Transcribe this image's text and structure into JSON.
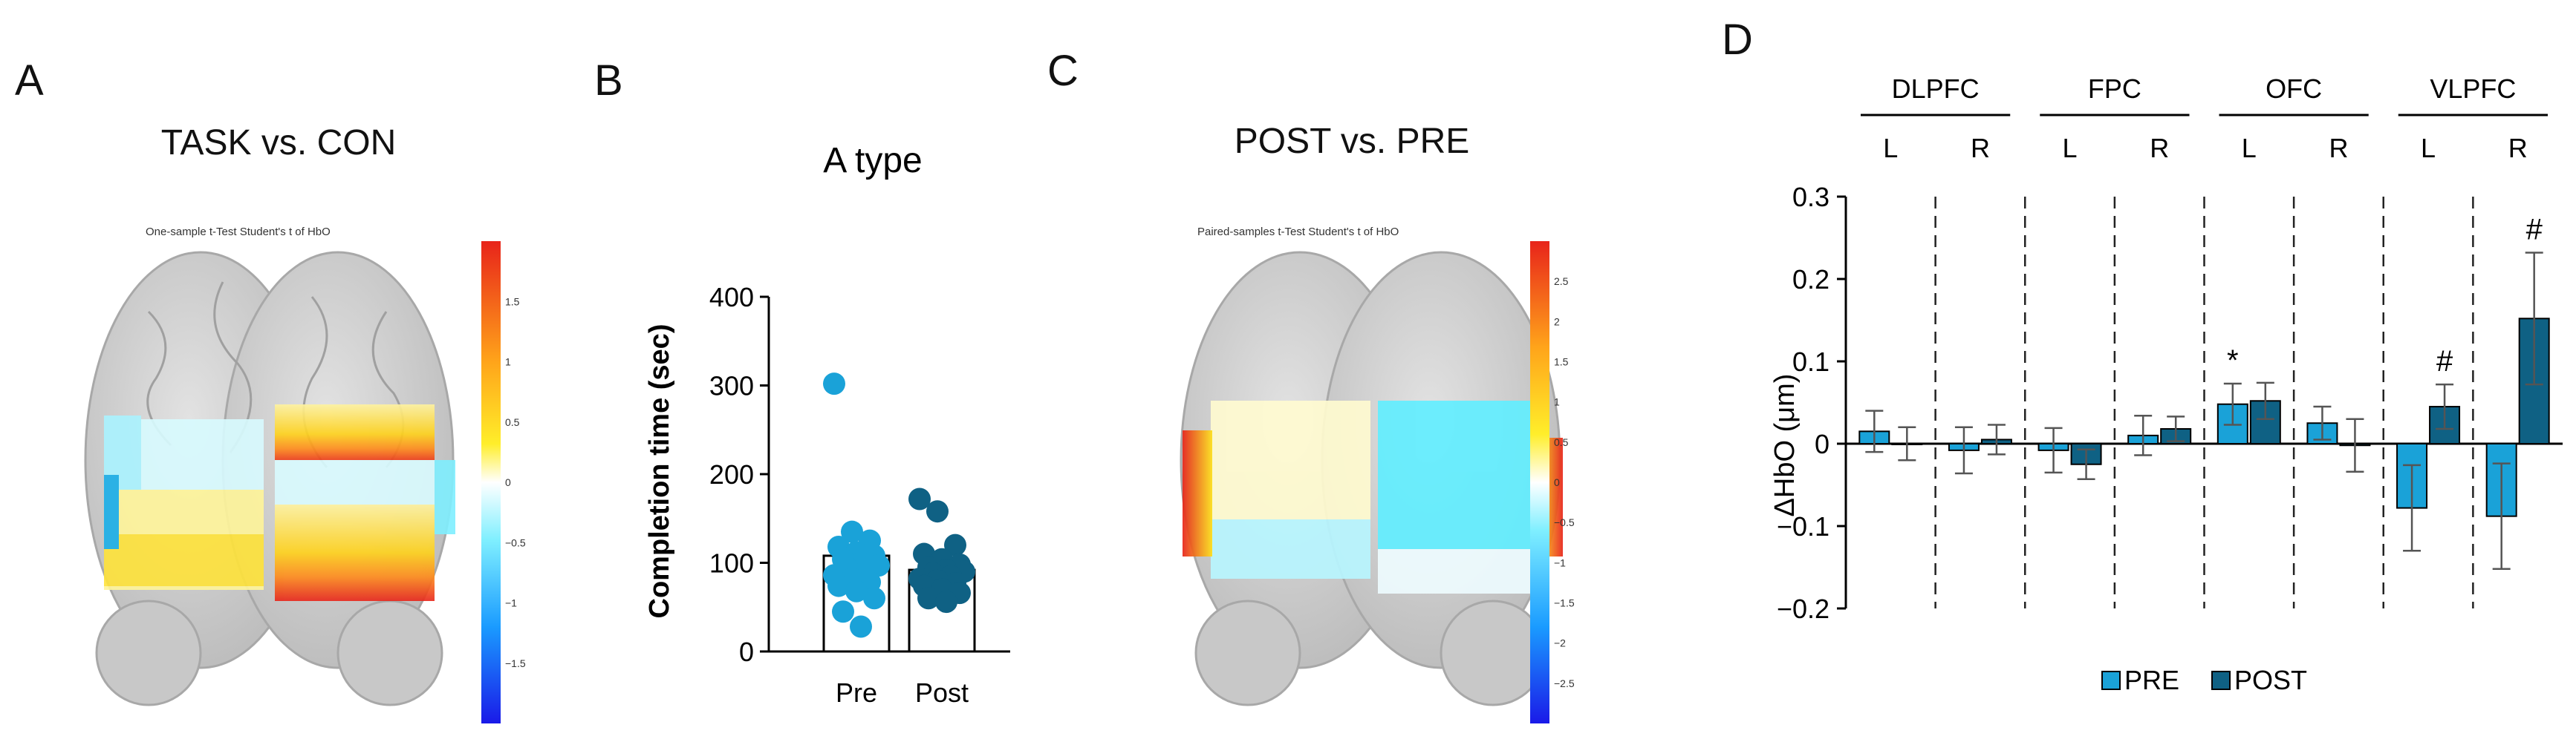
{
  "panels": {
    "a": {
      "letter": "A",
      "title": "TASK vs. CON",
      "map_caption": "One-sample t-Test Student's t of HbO",
      "colorbar_ticks": [
        "1.5",
        "1",
        "0.5",
        "0",
        "−0.5",
        "−1",
        "−1.5"
      ]
    },
    "b": {
      "letter": "B",
      "title": "A type"
    },
    "c": {
      "letter": "C",
      "title": "POST vs. PRE",
      "map_caption": "Paired-samples t-Test Student's t of HbO",
      "colorbar_ticks": [
        "2.5",
        "2",
        "1.5",
        "1",
        "0.5",
        "0",
        "−0.5",
        "−1",
        "−1.5",
        "−2",
        "−2.5"
      ]
    },
    "d": {
      "letter": "D"
    }
  },
  "colors": {
    "pre": "#1aa2d8",
    "post": "#0f6184",
    "map_hot": "#e8241a",
    "map_warm": "#ffe21a",
    "map_cool": "#7fefff",
    "brain": "#cfcfcf"
  },
  "chart_data": [
    {
      "type": "scatter",
      "title": "A type",
      "ylabel": "Completion time (sec)",
      "ylim": [
        0,
        400
      ],
      "yticks": [
        0,
        100,
        200,
        300,
        400
      ],
      "categories": [
        "Pre",
        "Post"
      ],
      "bar_means": [
        108,
        92
      ],
      "series": [
        {
          "values": [
            302,
            135,
            125,
            118,
            112,
            108,
            104,
            100,
            97,
            94,
            90,
            86,
            82,
            78,
            74,
            68,
            60,
            45,
            28
          ]
        },
        {
          "values": [
            172,
            158,
            120,
            110,
            104,
            98,
            95,
            92,
            90,
            88,
            85,
            82,
            80,
            77,
            74,
            70,
            66,
            60,
            56
          ]
        }
      ]
    },
    {
      "type": "bar",
      "ylabel": "ΔHbO (μm)",
      "ylim": [
        -0.2,
        0.3
      ],
      "yticks": [
        "0.3",
        "0.2",
        "0.1",
        "0",
        "−0.1",
        "−0.2"
      ],
      "regions": [
        {
          "name": "DLPFC",
          "sides": [
            "L",
            "R"
          ]
        },
        {
          "name": "FPC",
          "sides": [
            "L",
            "R"
          ]
        },
        {
          "name": "OFC",
          "sides": [
            "L",
            "R"
          ]
        },
        {
          "name": "VLPFC",
          "sides": [
            "L",
            "R"
          ]
        }
      ],
      "series": [
        {
          "name": "PRE",
          "values": [
            0.015,
            -0.008,
            -0.008,
            0.01,
            0.048,
            0.025,
            -0.078,
            -0.088
          ],
          "errors": [
            0.025,
            0.028,
            0.027,
            0.024,
            0.025,
            0.02,
            0.052,
            0.064
          ]
        },
        {
          "name": "POST",
          "values": [
            0.0,
            0.005,
            -0.025,
            0.018,
            0.052,
            -0.002,
            0.045,
            0.152
          ],
          "errors": [
            0.02,
            0.018,
            0.018,
            0.015,
            0.022,
            0.032,
            0.027,
            0.08
          ]
        }
      ],
      "annotations": [
        {
          "group": 4,
          "series": 0,
          "text": "*"
        },
        {
          "group": 6,
          "series": 1,
          "text": "#"
        },
        {
          "group": 7,
          "series": 1,
          "text": "#"
        }
      ],
      "legend": {
        "position": "bottom",
        "items": [
          "PRE",
          "POST"
        ]
      }
    }
  ]
}
